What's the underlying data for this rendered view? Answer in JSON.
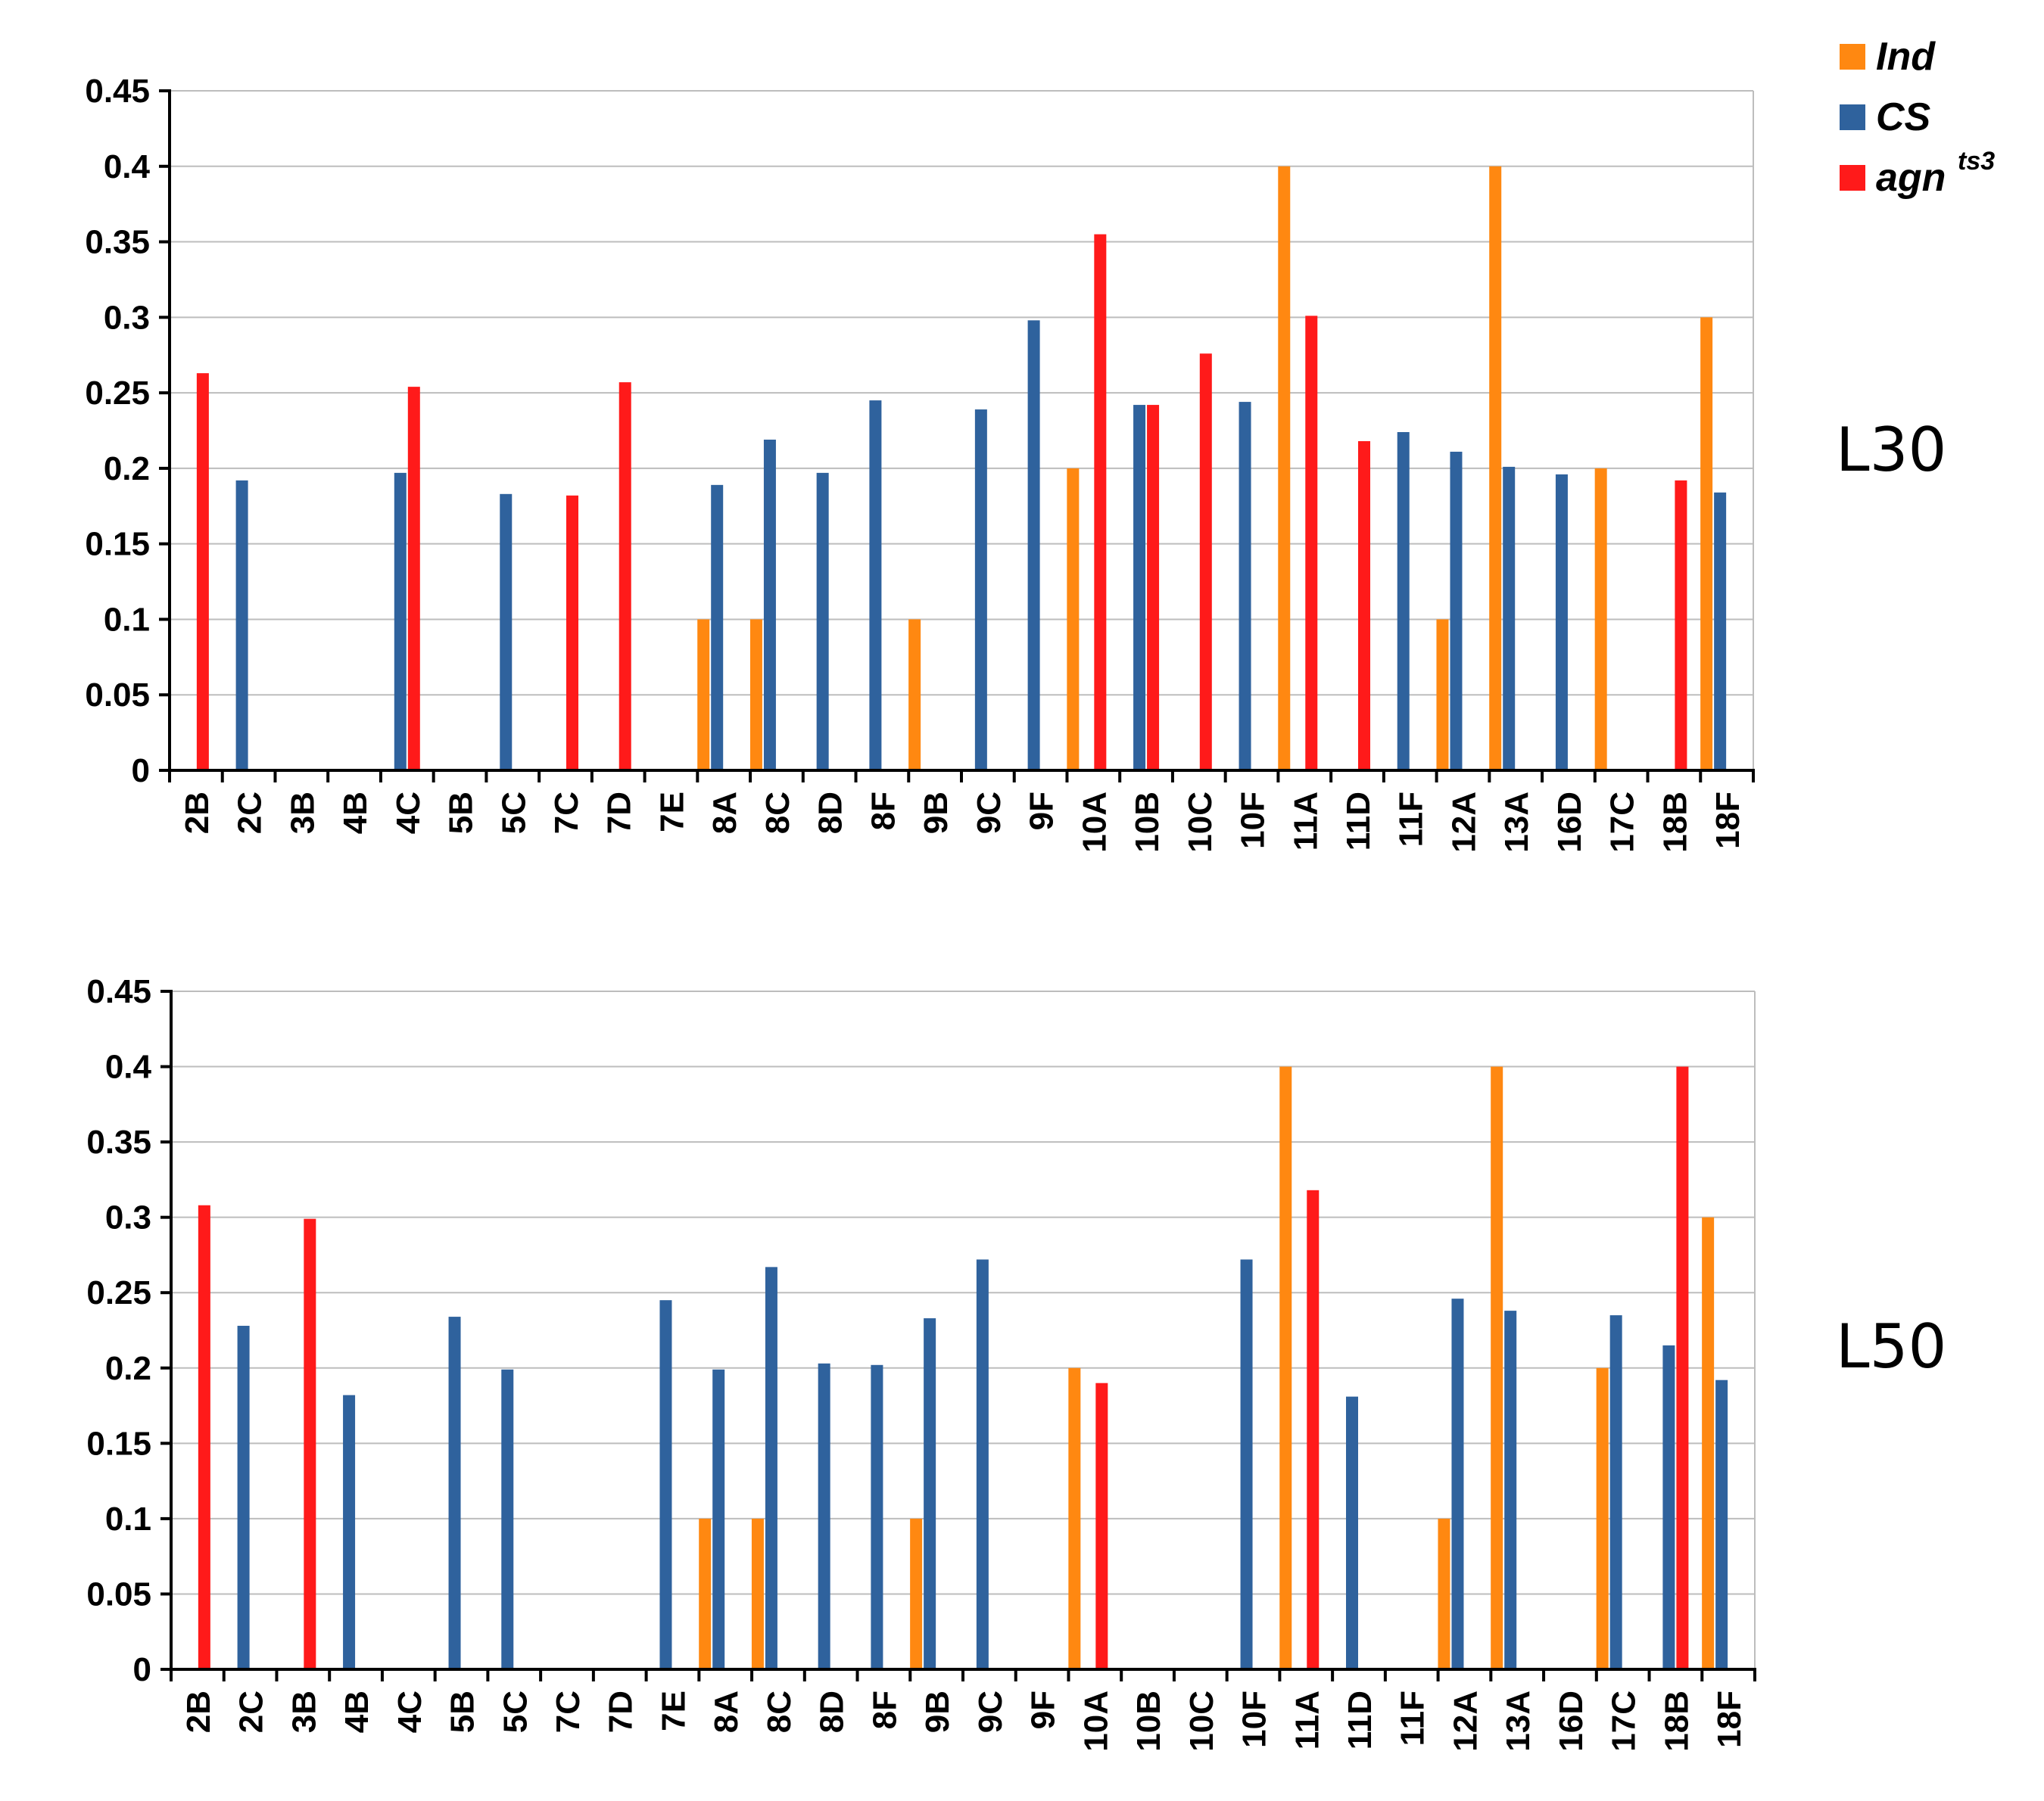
{
  "legend": [
    {
      "name": "Ind",
      "label": "Ind",
      "sup": "",
      "color": "#ff8811"
    },
    {
      "name": "CS",
      "label": "CS",
      "sup": "",
      "color": "#2f629d"
    },
    {
      "name": "agn",
      "label": "agn",
      "sup": "ts3",
      "color": "#ff1a1a"
    }
  ],
  "chart_data": [
    {
      "type": "bar",
      "panel_label": "L30",
      "ylim": [
        0,
        0.45
      ],
      "yticks": [
        "0",
        "0.05",
        "0.1",
        "0.15",
        "0.2",
        "0.25",
        "0.3",
        "0.35",
        "0.4",
        "0.45"
      ],
      "categories": [
        "2B",
        "2C",
        "3B",
        "4B",
        "4C",
        "5B",
        "5C",
        "7C",
        "7D",
        "7E",
        "8A",
        "8C",
        "8D",
        "8F",
        "9B",
        "9C",
        "9F",
        "10A",
        "10B",
        "10C",
        "10F",
        "11A",
        "11D",
        "11F",
        "12A",
        "13A",
        "16D",
        "17C",
        "18B",
        "18F"
      ],
      "series": [
        {
          "name": "Ind",
          "values": [
            0,
            0,
            0,
            0,
            0,
            0,
            0,
            0,
            0,
            0,
            0.1,
            0.1,
            0,
            0,
            0.1,
            0,
            0,
            0.2,
            0,
            0,
            0,
            0.4,
            0,
            0,
            0.1,
            0.4,
            0,
            0.2,
            0,
            0.3
          ]
        },
        {
          "name": "CS",
          "values": [
            0,
            0.192,
            0,
            0,
            0.197,
            0,
            0.183,
            0,
            0,
            0,
            0.189,
            0.219,
            0.197,
            0.245,
            0,
            0.239,
            0.298,
            0,
            0.242,
            0,
            0.244,
            0,
            0,
            0.224,
            0.211,
            0.201,
            0.196,
            0,
            0,
            0.184
          ]
        },
        {
          "name": "agn",
          "values": [
            0.263,
            0,
            0,
            0,
            0.254,
            0,
            0,
            0.182,
            0.257,
            0,
            0,
            0,
            0,
            0,
            0,
            0,
            0,
            0.355,
            0.242,
            0.276,
            0,
            0.301,
            0.218,
            0,
            0,
            0,
            0,
            0,
            0.192,
            0
          ]
        }
      ]
    },
    {
      "type": "bar",
      "panel_label": "L50",
      "ylim": [
        0,
        0.45
      ],
      "yticks": [
        "0",
        "0.05",
        "0.1",
        "0.15",
        "0.2",
        "0.25",
        "0.3",
        "0.35",
        "0.4",
        "0.45"
      ],
      "categories": [
        "2B",
        "2C",
        "3B",
        "4B",
        "4C",
        "5B",
        "5C",
        "7C",
        "7D",
        "7E",
        "8A",
        "8C",
        "8D",
        "8F",
        "9B",
        "9C",
        "9F",
        "10A",
        "10B",
        "10C",
        "10F",
        "11A",
        "11D",
        "11F",
        "12A",
        "13A",
        "16D",
        "17C",
        "18B",
        "18F"
      ],
      "series": [
        {
          "name": "Ind",
          "values": [
            0,
            0,
            0,
            0,
            0,
            0,
            0,
            0,
            0,
            0,
            0.1,
            0.1,
            0,
            0,
            0.1,
            0,
            0,
            0.2,
            0,
            0,
            0,
            0.4,
            0,
            0,
            0.1,
            0.4,
            0,
            0.2,
            0,
            0.3
          ]
        },
        {
          "name": "CS",
          "values": [
            0,
            0.228,
            0,
            0.182,
            0,
            0.234,
            0.199,
            0,
            0,
            0.245,
            0.199,
            0.267,
            0.203,
            0.202,
            0.233,
            0.272,
            0,
            0,
            0,
            0,
            0.272,
            0,
            0.181,
            0,
            0.246,
            0.238,
            0,
            0.235,
            0.215,
            0.192
          ]
        },
        {
          "name": "agn",
          "values": [
            0.308,
            0,
            0.299,
            0,
            0,
            0,
            0,
            0,
            0,
            0,
            0,
            0,
            0,
            0,
            0,
            0,
            0,
            0.19,
            0,
            0,
            0,
            0.318,
            0,
            0,
            0,
            0,
            0,
            0,
            0.4,
            0
          ]
        }
      ]
    }
  ]
}
